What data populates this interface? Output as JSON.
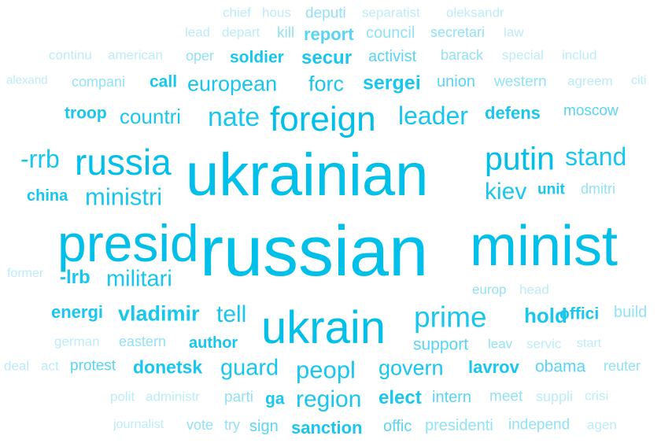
{
  "palette": [
    "#00bfe9",
    "#19c6ee",
    "#59d5f3",
    "#92e2f6",
    "#bcecf8"
  ],
  "words": [
    {
      "text": "chief",
      "tone": 4
    },
    {
      "text": "hous",
      "tone": 4
    },
    {
      "text": "deputi",
      "tone": 3
    },
    {
      "text": "separatist",
      "tone": 4
    },
    {
      "text": "oleksandr",
      "tone": 4
    },
    {
      "text": "lead",
      "tone": 4
    },
    {
      "text": "depart",
      "tone": 4
    },
    {
      "text": "kill",
      "tone": 3
    },
    {
      "text": "report",
      "tone": 2
    },
    {
      "text": "council",
      "tone": 3
    },
    {
      "text": "secretari",
      "tone": 3
    },
    {
      "text": "law",
      "tone": 4
    },
    {
      "text": "continu",
      "tone": 4
    },
    {
      "text": "american",
      "tone": 4
    },
    {
      "text": "oper",
      "tone": 3
    },
    {
      "text": "soldier",
      "tone": 1
    },
    {
      "text": "secur",
      "tone": 1
    },
    {
      "text": "activist",
      "tone": 2
    },
    {
      "text": "barack",
      "tone": 3
    },
    {
      "text": "special",
      "tone": 4
    },
    {
      "text": "includ",
      "tone": 4
    },
    {
      "text": "alexand",
      "tone": 4
    },
    {
      "text": "compani",
      "tone": 3
    },
    {
      "text": "call",
      "tone": 1
    },
    {
      "text": "european",
      "tone": 1
    },
    {
      "text": "forc",
      "tone": 1
    },
    {
      "text": "sergei",
      "tone": 1
    },
    {
      "text": "union",
      "tone": 2
    },
    {
      "text": "western",
      "tone": 3
    },
    {
      "text": "agreem",
      "tone": 4
    },
    {
      "text": "citi",
      "tone": 4
    },
    {
      "text": "troop",
      "tone": 1
    },
    {
      "text": "countri",
      "tone": 1
    },
    {
      "text": "nate",
      "tone": 1
    },
    {
      "text": "foreign",
      "tone": 0
    },
    {
      "text": "leader",
      "tone": 1
    },
    {
      "text": "defens",
      "tone": 1
    },
    {
      "text": "moscow",
      "tone": 2
    },
    {
      "text": "-rrb",
      "tone": 1
    },
    {
      "text": "russia",
      "tone": 0
    },
    {
      "text": "ukrainian",
      "tone": 0
    },
    {
      "text": "putin",
      "tone": 0
    },
    {
      "text": "stand",
      "tone": 1
    },
    {
      "text": "china",
      "tone": 1
    },
    {
      "text": "ministri",
      "tone": 1
    },
    {
      "text": "kiev",
      "tone": 1
    },
    {
      "text": "unit",
      "tone": 1
    },
    {
      "text": "dmitri",
      "tone": 3
    },
    {
      "text": "presid",
      "tone": 0
    },
    {
      "text": "russian",
      "tone": 0
    },
    {
      "text": "minist",
      "tone": 0
    },
    {
      "text": "former",
      "tone": 4
    },
    {
      "text": "-lrb",
      "tone": 1
    },
    {
      "text": "militari",
      "tone": 1
    },
    {
      "text": "europ",
      "tone": 3
    },
    {
      "text": "head",
      "tone": 4
    },
    {
      "text": "energi",
      "tone": 1
    },
    {
      "text": "vladimir",
      "tone": 1
    },
    {
      "text": "tell",
      "tone": 1
    },
    {
      "text": "ukrain",
      "tone": 0
    },
    {
      "text": "prime",
      "tone": 1
    },
    {
      "text": "hold",
      "tone": 1
    },
    {
      "text": "offici",
      "tone": 1
    },
    {
      "text": "build",
      "tone": 3
    },
    {
      "text": "german",
      "tone": 4
    },
    {
      "text": "eastern",
      "tone": 3
    },
    {
      "text": "author",
      "tone": 1
    },
    {
      "text": "support",
      "tone": 2
    },
    {
      "text": "leav",
      "tone": 3
    },
    {
      "text": "servic",
      "tone": 4
    },
    {
      "text": "start",
      "tone": 4
    },
    {
      "text": "deal",
      "tone": 4
    },
    {
      "text": "act",
      "tone": 4
    },
    {
      "text": "protest",
      "tone": 2
    },
    {
      "text": "donetsk",
      "tone": 1
    },
    {
      "text": "guard",
      "tone": 1
    },
    {
      "text": "peopl",
      "tone": 1
    },
    {
      "text": "govern",
      "tone": 1
    },
    {
      "text": "lavrov",
      "tone": 1
    },
    {
      "text": "obama",
      "tone": 2
    },
    {
      "text": "reuter",
      "tone": 3
    },
    {
      "text": "polit",
      "tone": 4
    },
    {
      "text": "administr",
      "tone": 4
    },
    {
      "text": "parti",
      "tone": 3
    },
    {
      "text": "ga",
      "tone": 1
    },
    {
      "text": "region",
      "tone": 1
    },
    {
      "text": "elect",
      "tone": 1
    },
    {
      "text": "intern",
      "tone": 2
    },
    {
      "text": "meet",
      "tone": 3
    },
    {
      "text": "suppli",
      "tone": 4
    },
    {
      "text": "crisi",
      "tone": 4
    },
    {
      "text": "journalist",
      "tone": 4
    },
    {
      "text": "vote",
      "tone": 3
    },
    {
      "text": "try",
      "tone": 3
    },
    {
      "text": "sign",
      "tone": 2
    },
    {
      "text": "sanction",
      "tone": 1
    },
    {
      "text": "offic",
      "tone": 2
    },
    {
      "text": "presidenti",
      "tone": 3
    },
    {
      "text": "independ",
      "tone": 3
    },
    {
      "text": "agen",
      "tone": 4
    }
  ]
}
